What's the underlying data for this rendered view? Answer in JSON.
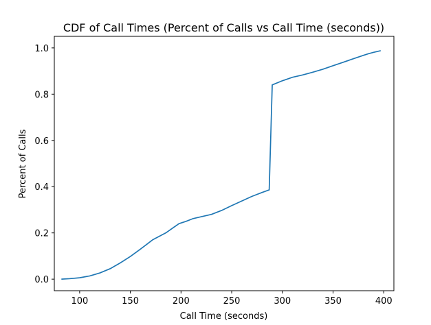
{
  "chart_data": {
    "type": "line",
    "title": "CDF of Call Times (Percent of Calls vs Call Time (seconds))",
    "xlabel": "Call Time (seconds)",
    "ylabel": "Percent of Calls",
    "xlim": [
      75,
      410
    ],
    "ylim": [
      -0.05,
      1.05
    ],
    "xticks": [
      100,
      150,
      200,
      250,
      300,
      350,
      400
    ],
    "xtick_labels": [
      "100",
      "150",
      "200",
      "250",
      "300",
      "350",
      "400"
    ],
    "yticks": [
      0.0,
      0.2,
      0.4,
      0.6,
      0.8,
      1.0
    ],
    "ytick_labels": [
      "0.0",
      "0.2",
      "0.4",
      "0.6",
      "0.8",
      "1.0"
    ],
    "grid": false,
    "legend": "none",
    "series": [
      {
        "color": "#1f77b4",
        "x": [
          82,
          90,
          100,
          110,
          120,
          130,
          140,
          150,
          160,
          172,
          185,
          198,
          205,
          212,
          220,
          230,
          240,
          250,
          260,
          270,
          280,
          287,
          290,
          300,
          310,
          320,
          330,
          340,
          350,
          360,
          370,
          380,
          385,
          390,
          397
        ],
        "y": [
          0.0,
          0.002,
          0.006,
          0.014,
          0.027,
          0.045,
          0.07,
          0.098,
          0.13,
          0.17,
          0.2,
          0.24,
          0.25,
          0.262,
          0.27,
          0.28,
          0.297,
          0.318,
          0.338,
          0.358,
          0.375,
          0.386,
          0.84,
          0.858,
          0.873,
          0.883,
          0.895,
          0.908,
          0.923,
          0.938,
          0.953,
          0.968,
          0.975,
          0.981,
          0.988
        ]
      }
    ]
  }
}
